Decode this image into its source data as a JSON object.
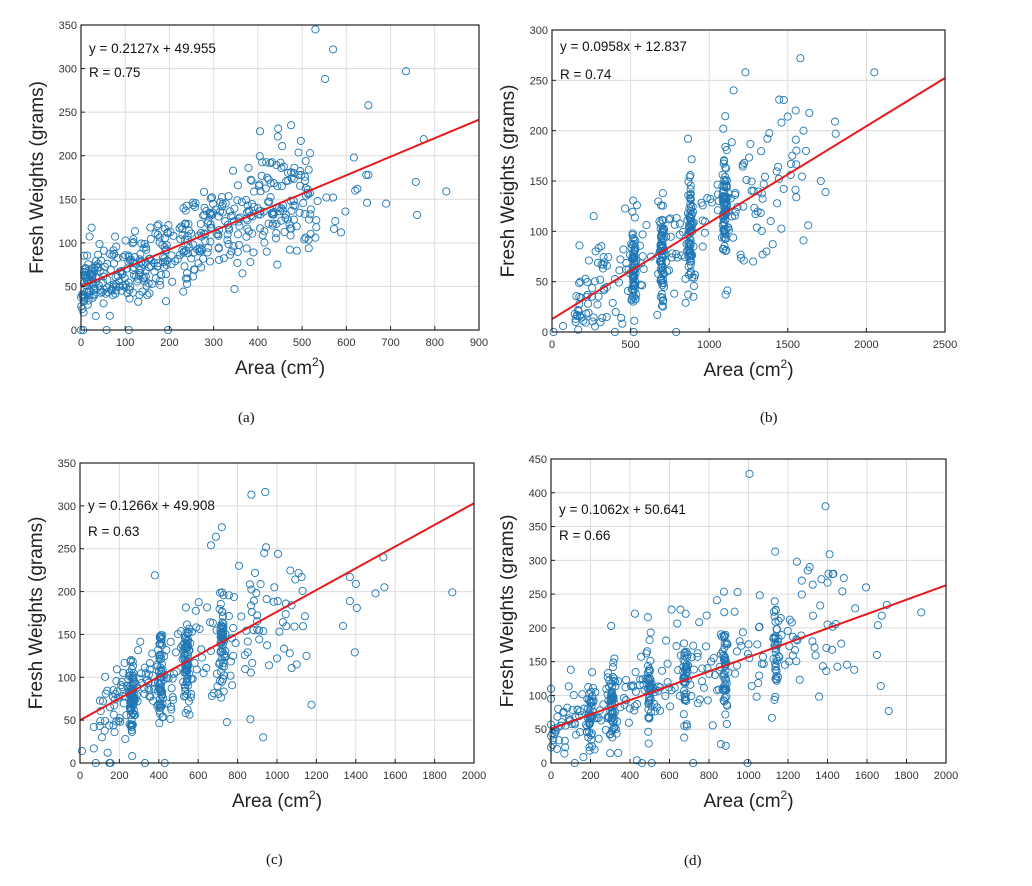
{
  "colors": {
    "marker": "#1f77b4",
    "fit": "#e8191c",
    "grid": "#dcdcdc",
    "axis": "#222222"
  },
  "chart_data": [
    {
      "id": "a",
      "type": "scatter",
      "caption": "(a)",
      "xlabel": "Area (cm",
      "xlabel_sup": "2",
      "xlabel_close": ")",
      "ylabel": "Fresh Weights (grams)",
      "xlim": [
        0,
        900
      ],
      "ylim": [
        0,
        350
      ],
      "xticks": [
        0,
        100,
        200,
        300,
        400,
        500,
        600,
        700,
        800,
        900
      ],
      "yticks": [
        0,
        50,
        100,
        150,
        200,
        250,
        300,
        350
      ],
      "grid": true,
      "equation": "y = 0.2127x + 49.955",
      "r_label": "R = 0.75",
      "fit": {
        "slope": 0.2127,
        "intercept": 49.955
      },
      "outliers": [
        [
          530,
          345
        ],
        [
          570,
          322
        ],
        [
          552,
          288
        ],
        [
          735,
          297
        ],
        [
          650,
          258
        ],
        [
          405,
          228
        ],
        [
          475,
          235
        ],
        [
          497,
          217
        ],
        [
          445,
          222
        ],
        [
          455,
          211
        ],
        [
          775,
          219
        ],
        [
          617,
          198
        ],
        [
          757,
          170
        ],
        [
          826,
          159
        ],
        [
          760,
          132
        ],
        [
          690,
          145
        ],
        [
          647,
          146
        ],
        [
          620,
          160
        ],
        [
          625,
          162
        ],
        [
          645,
          178
        ],
        [
          650,
          178
        ],
        [
          598,
          136
        ],
        [
          588,
          112
        ],
        [
          575,
          125
        ],
        [
          572,
          116
        ],
        [
          530,
          106
        ],
        [
          532,
          118
        ],
        [
          532,
          126
        ],
        [
          505,
          104
        ],
        [
          508,
          106
        ],
        [
          0,
          0
        ],
        [
          5,
          0
        ],
        [
          58,
          0
        ],
        [
          108,
          0
        ],
        [
          197,
          0
        ],
        [
          347,
          47
        ],
        [
          365,
          65
        ],
        [
          383,
          78
        ],
        [
          110,
          36
        ],
        [
          155,
          42
        ],
        [
          150,
          40
        ],
        [
          72,
          40
        ],
        [
          5,
          40
        ],
        [
          8,
          36
        ],
        [
          6,
          33
        ],
        [
          390,
          89
        ],
        [
          420,
          90
        ],
        [
          488,
          91
        ],
        [
          515,
          184
        ],
        [
          535,
          148
        ],
        [
          555,
          152
        ],
        [
          570,
          152
        ]
      ],
      "cluster": {
        "n": 460,
        "xmin": 0,
        "xmax": 520,
        "noise": 28,
        "seed": 11
      }
    },
    {
      "id": "b",
      "type": "scatter",
      "caption": "(b)",
      "xlabel": "Area (cm",
      "xlabel_sup": "2",
      "xlabel_close": ")",
      "ylabel": "Fresh Weights (grams)",
      "xlim": [
        0,
        2500
      ],
      "ylim": [
        0,
        300
      ],
      "xticks": [
        0,
        500,
        1000,
        1500,
        2000,
        2500
      ],
      "yticks": [
        0,
        50,
        100,
        150,
        200,
        250,
        300
      ],
      "grid": true,
      "equation": "y = 0.0958x + 12.837",
      "r_label": "R = 0.74",
      "fit": {
        "slope": 0.0958,
        "intercept": 12.837
      },
      "outliers": [
        [
          1580,
          272
        ],
        [
          1230,
          258
        ],
        [
          2050,
          258
        ],
        [
          1155,
          240
        ],
        [
          1550,
          220
        ],
        [
          1800,
          209
        ],
        [
          1805,
          197
        ],
        [
          1460,
          208
        ],
        [
          1090,
          202
        ],
        [
          1600,
          200
        ],
        [
          865,
          192
        ],
        [
          1370,
          192
        ],
        [
          1710,
          150
        ],
        [
          1740,
          139
        ],
        [
          1630,
          106
        ],
        [
          1600,
          91
        ],
        [
          265,
          115
        ],
        [
          175,
          86
        ],
        [
          235,
          71
        ],
        [
          180,
          50
        ],
        [
          540,
          126
        ],
        [
          10,
          0
        ],
        [
          400,
          0
        ],
        [
          520,
          0
        ],
        [
          790,
          0
        ],
        [
          70,
          6
        ],
        [
          150,
          13
        ],
        [
          145,
          18
        ],
        [
          160,
          17
        ],
        [
          150,
          10
        ],
        [
          320,
          14
        ],
        [
          440,
          14
        ],
        [
          670,
          17
        ],
        [
          850,
          29
        ],
        [
          900,
          35
        ],
        [
          1340,
          77
        ],
        [
          1280,
          70
        ],
        [
          1220,
          71
        ]
      ],
      "cluster": {
        "n": 470,
        "xmin": 150,
        "xmax": 1650,
        "noise": 27,
        "seed": 23,
        "columns": [
          520,
          700,
          880,
          1100
        ]
      }
    },
    {
      "id": "c",
      "type": "scatter",
      "caption": "(c)",
      "xlabel": "Area (cm",
      "xlabel_sup": "2",
      "xlabel_close": ")",
      "ylabel": "Fresh Weights (grams)",
      "xlim": [
        0,
        2000
      ],
      "ylim": [
        0,
        350
      ],
      "xticks": [
        0,
        200,
        400,
        600,
        800,
        1000,
        1200,
        1400,
        1600,
        1800,
        2000
      ],
      "yticks": [
        0,
        50,
        100,
        150,
        200,
        250,
        300,
        350
      ],
      "grid": true,
      "equation": "y = 0.1266x + 49.908",
      "r_label": "R = 0.63",
      "fit": {
        "slope": 0.1266,
        "intercept": 49.908
      },
      "outliers": [
        [
          870,
          313
        ],
        [
          940,
          316
        ],
        [
          720,
          275
        ],
        [
          690,
          264
        ],
        [
          665,
          254
        ],
        [
          1890,
          199
        ],
        [
          1540,
          240
        ],
        [
          1545,
          205
        ],
        [
          1500,
          198
        ],
        [
          1370,
          217
        ],
        [
          1400,
          209
        ],
        [
          1405,
          181
        ],
        [
          1370,
          189
        ],
        [
          1335,
          160
        ],
        [
          1395,
          129
        ],
        [
          1175,
          68
        ],
        [
          930,
          30
        ],
        [
          865,
          51
        ],
        [
          380,
          219
        ],
        [
          10,
          14
        ],
        [
          70,
          17
        ],
        [
          80,
          0
        ],
        [
          150,
          0
        ],
        [
          155,
          0
        ],
        [
          330,
          0
        ],
        [
          430,
          0
        ],
        [
          140,
          12
        ],
        [
          265,
          8
        ],
        [
          100,
          43
        ],
        [
          70,
          42
        ],
        [
          170,
          44
        ],
        [
          175,
          36
        ],
        [
          230,
          28
        ],
        [
          1150,
          125
        ],
        [
          1100,
          115
        ],
        [
          1065,
          128
        ],
        [
          1000,
          122
        ],
        [
          960,
          114
        ],
        [
          1125,
          217
        ],
        [
          1005,
          244
        ],
        [
          935,
          245
        ]
      ],
      "cluster": {
        "n": 430,
        "xmin": 100,
        "xmax": 1150,
        "noise": 32,
        "seed": 37,
        "columns": [
          265,
          410,
          540,
          720
        ]
      }
    },
    {
      "id": "d",
      "type": "scatter",
      "caption": "(d)",
      "xlabel": "Area (cm",
      "xlabel_sup": "2",
      "xlabel_close": ")",
      "ylabel": "Fresh Weights (grams)",
      "xlim": [
        0,
        2000
      ],
      "ylim": [
        0,
        450
      ],
      "xticks": [
        0,
        200,
        400,
        600,
        800,
        1000,
        1200,
        1400,
        1600,
        1800,
        2000
      ],
      "yticks": [
        0,
        50,
        100,
        150,
        200,
        250,
        300,
        350,
        400,
        450
      ],
      "grid": true,
      "equation": "y = 0.1062x + 50.641",
      "r_label": "R = 0.66",
      "fit": {
        "slope": 0.1062,
        "intercept": 50.641
      },
      "outliers": [
        [
          1005,
          428
        ],
        [
          1390,
          380
        ],
        [
          1135,
          313
        ],
        [
          1410,
          309
        ],
        [
          1245,
          298
        ],
        [
          1310,
          290
        ],
        [
          1300,
          285
        ],
        [
          1405,
          280
        ],
        [
          1430,
          280
        ],
        [
          1270,
          270
        ],
        [
          1325,
          264
        ],
        [
          1400,
          267
        ],
        [
          1595,
          260
        ],
        [
          1875,
          223
        ],
        [
          1700,
          234
        ],
        [
          1710,
          77
        ],
        [
          1670,
          114
        ],
        [
          1650,
          160
        ],
        [
          1535,
          138
        ],
        [
          1540,
          229
        ],
        [
          1655,
          204
        ],
        [
          1675,
          218
        ],
        [
          120,
          0
        ],
        [
          460,
          0
        ],
        [
          510,
          0
        ],
        [
          720,
          0
        ],
        [
          995,
          0
        ],
        [
          435,
          4
        ],
        [
          860,
          28
        ],
        [
          340,
          15
        ],
        [
          220,
          20
        ],
        [
          100,
          138
        ],
        [
          0,
          110
        ],
        [
          0,
          95
        ],
        [
          0,
          57
        ],
        [
          0,
          40
        ],
        [
          0,
          23
        ],
        [
          945,
          253
        ],
        [
          840,
          241
        ],
        [
          655,
          227
        ],
        [
          610,
          227
        ],
        [
          425,
          221
        ],
        [
          490,
          216
        ],
        [
          305,
          203
        ]
      ],
      "cluster": {
        "n": 480,
        "xmin": 0,
        "xmax": 1500,
        "noise": 38,
        "seed": 53,
        "columns": [
          200,
          310,
          500,
          680,
          880,
          1140
        ]
      }
    }
  ]
}
